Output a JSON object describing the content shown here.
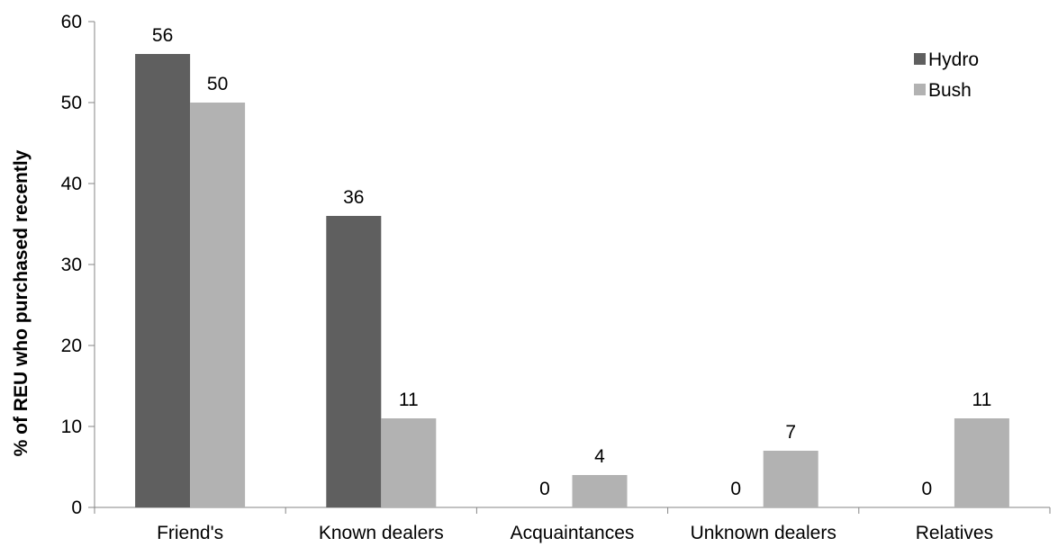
{
  "chart_data": {
    "type": "bar",
    "title": "",
    "xlabel": "",
    "ylabel": "% of REU who purchased recently",
    "categories": [
      "Friend's",
      "Known dealers",
      "Acquaintances",
      "Unknown dealers",
      "Relatives"
    ],
    "series": [
      {
        "name": "Hydro",
        "values": [
          56,
          36,
          0,
          0,
          0
        ],
        "color": "#5f5f5f"
      },
      {
        "name": "Bush",
        "values": [
          50,
          11,
          4,
          7,
          11
        ],
        "color": "#b2b2b2"
      }
    ],
    "ylim": [
      0,
      60
    ],
    "yticks": [
      0,
      10,
      20,
      30,
      40,
      50,
      60
    ],
    "grid": false,
    "legend_position": "top-right",
    "data_labels": true
  }
}
